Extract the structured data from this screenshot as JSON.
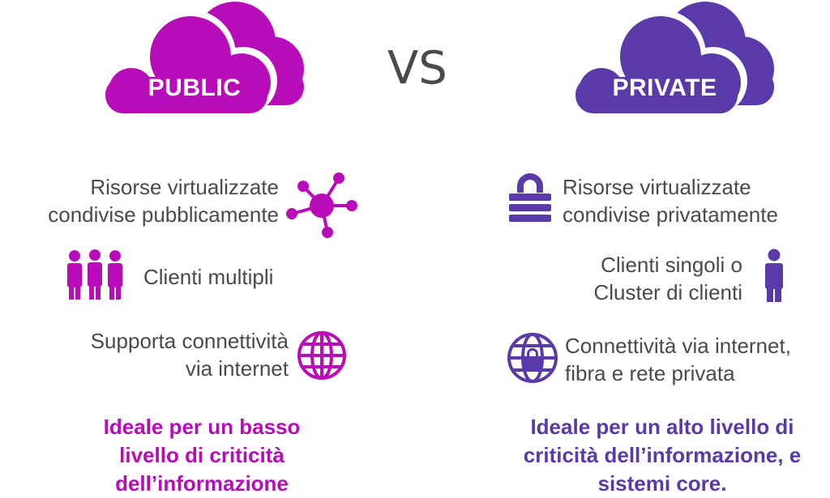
{
  "colors": {
    "public": "#b80cb8",
    "private": "#5a3aa8",
    "text": "#4a4a4a"
  },
  "vs": "VS",
  "public": {
    "label": "PUBLIC",
    "features": [
      {
        "icon": "network-nodes-icon",
        "lines": [
          "Risorse virtualizzate",
          "condivise pubblicamente"
        ]
      },
      {
        "icon": "multiple-users-icon",
        "lines": [
          "Clienti multipli"
        ]
      },
      {
        "icon": "globe-icon",
        "lines": [
          "Supporta connettività",
          "via internet"
        ]
      }
    ],
    "footer": [
      "Ideale per un basso",
      "livello di criticità",
      "dell’informazione"
    ]
  },
  "private": {
    "label": "PRIVATE",
    "features": [
      {
        "icon": "padlock-icon",
        "lines": [
          "Risorse virtualizzate",
          "condivise privatamente"
        ]
      },
      {
        "icon": "single-user-icon",
        "lines": [
          "Clienti singoli o",
          "Cluster di clienti"
        ]
      },
      {
        "icon": "secure-globe-icon",
        "lines": [
          "Connettività via internet,",
          "fibra e rete privata"
        ]
      }
    ],
    "footer": [
      "Ideale per un alto livello di",
      "criticità dell’informazione, e",
      "sistemi core."
    ]
  }
}
